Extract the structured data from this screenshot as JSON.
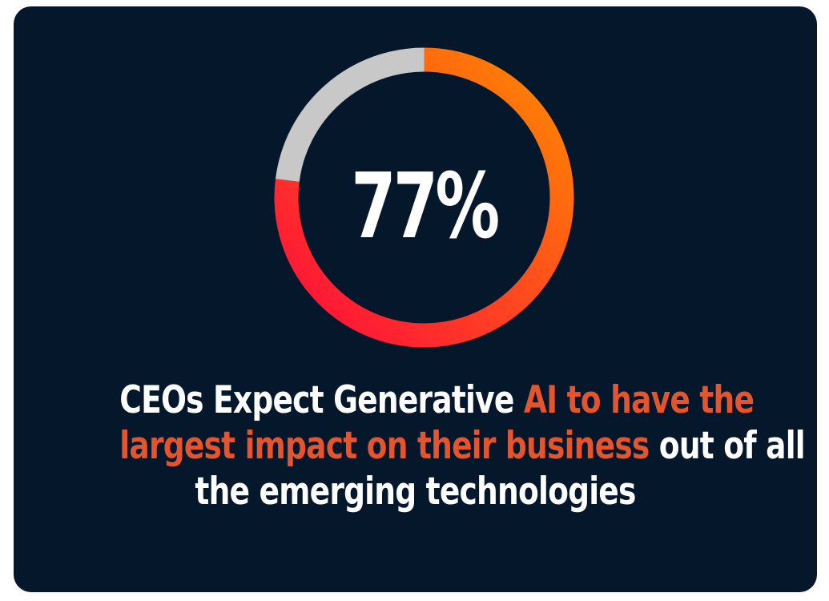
{
  "chart_data": {
    "type": "pie",
    "variant": "donut",
    "slices": [
      {
        "label": "",
        "value": 77,
        "color_start": "#ff0a3c",
        "color_end": "#ff8a00"
      },
      {
        "label": "",
        "value": 23,
        "color": "#c8c8c8"
      }
    ],
    "center_label": "77%",
    "start_angle_deg": 0,
    "direction": "clockwise",
    "track_color": "#c8c8c8"
  },
  "caption": {
    "lines": [
      [
        {
          "text": "CEOs Expect Generative ",
          "highlight": false
        },
        {
          "text": "AI to have the",
          "highlight": true
        }
      ],
      [
        {
          "text": "largest impact on their business",
          "highlight": true
        },
        {
          "text": " out of all",
          "highlight": false
        }
      ],
      [
        {
          "text": "the emerging technologies",
          "highlight": false
        }
      ]
    ]
  },
  "colors": {
    "background": "#05172b",
    "text": "#ffffff",
    "highlight": "#e3552f"
  }
}
